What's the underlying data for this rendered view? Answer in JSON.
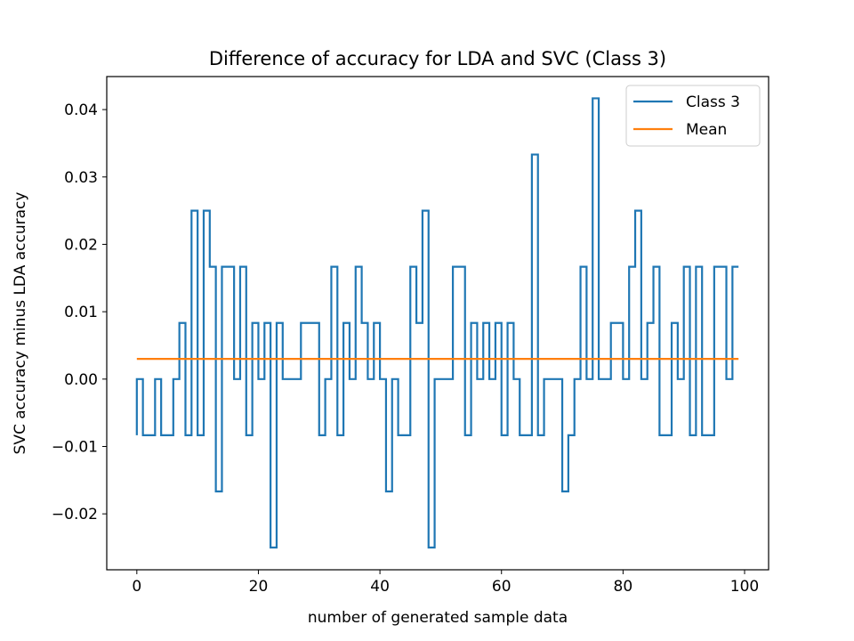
{
  "chart_data": {
    "type": "line",
    "title": "Difference of accuracy for LDA and SVC (Class 3)",
    "xlabel": "number of generated sample data",
    "ylabel": "SVC accuracy minus LDA accuracy",
    "xlim": [
      -4.95,
      103.95
    ],
    "ylim": [
      -0.0283,
      0.0449
    ],
    "xticks": [
      0,
      20,
      40,
      60,
      80,
      100
    ],
    "xtick_labels": [
      "0",
      "20",
      "40",
      "60",
      "80",
      "100"
    ],
    "yticks": [
      -0.02,
      -0.01,
      0.0,
      0.01,
      0.02,
      0.03,
      0.04
    ],
    "ytick_labels": [
      "−0.02",
      "−0.01",
      "0.00",
      "0.01",
      "0.02",
      "0.03",
      "0.04"
    ],
    "grid": false,
    "legend_position": "top-right",
    "series": [
      {
        "name": "Class 3",
        "color": "#1f77b4",
        "drawstyle": "steps",
        "values": [
          -0.00833,
          0.0,
          -0.00833,
          -0.00833,
          0.0,
          -0.00833,
          -0.00833,
          0.0,
          0.00833,
          -0.00833,
          0.025,
          -0.00833,
          0.025,
          0.01667,
          -0.01667,
          0.01667,
          0.01667,
          0.0,
          0.01667,
          -0.00833,
          0.00833,
          0.0,
          0.00833,
          -0.025,
          0.00833,
          0.0,
          0.0,
          0.0,
          0.00833,
          0.00833,
          0.00833,
          -0.00833,
          0.0,
          0.01667,
          -0.00833,
          0.00833,
          0.0,
          0.01667,
          0.00833,
          0.0,
          0.00833,
          0.0,
          -0.01667,
          0.0,
          -0.00833,
          -0.00833,
          0.01667,
          0.00833,
          0.025,
          -0.025,
          0.0,
          0.0,
          0.0,
          0.01667,
          0.01667,
          -0.00833,
          0.00833,
          0.0,
          0.00833,
          0.0,
          0.00833,
          -0.00833,
          0.00833,
          0.0,
          -0.00833,
          -0.00833,
          0.03333,
          -0.00833,
          0.0,
          0.0,
          0.0,
          -0.01667,
          -0.00833,
          0.0,
          0.01667,
          0.0,
          0.04167,
          0.0,
          0.0,
          0.00833,
          0.00833,
          0.0,
          0.01667,
          0.025,
          0.0,
          0.00833,
          0.01667,
          -0.00833,
          -0.00833,
          0.00833,
          0.0,
          0.01667,
          -0.00833,
          0.01667,
          -0.00833,
          -0.00833,
          0.01667,
          0.01667,
          0.0,
          0.01667
        ]
      },
      {
        "name": "Mean",
        "color": "#ff7f0e",
        "x": [
          0,
          99
        ],
        "values": [
          0.003,
          0.003
        ]
      }
    ]
  }
}
